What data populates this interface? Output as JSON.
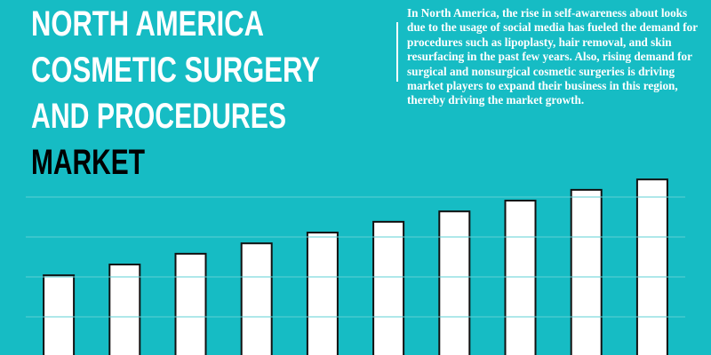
{
  "chart_data": {
    "type": "bar",
    "title_lines": [
      "NORTH AMERICA",
      "COSMETIC SURGERY",
      "AND PROCEDURES",
      "MARKET"
    ],
    "description": "In North America, the rise in self-awareness about looks due to the usage of social media has fueled the demand for procedures such as lipoplasty, hair removal, and skin resurfacing in the past few years. Also, rising demand for surgical and nonsurgical cosmetic surgeries is driving market players to expand their business in this region, thereby driving the market growth.",
    "categories": [
      null,
      null,
      null,
      null,
      null,
      null,
      null,
      null,
      null,
      null
    ],
    "values": [
      2.04,
      2.31,
      2.58,
      2.84,
      3.11,
      3.38,
      3.64,
      3.91,
      4.18,
      4.44
    ],
    "color": "#ffffff",
    "ylim": [
      0,
      5
    ],
    "yticks": [
      1,
      2,
      3,
      4
    ],
    "grid": true
  }
}
